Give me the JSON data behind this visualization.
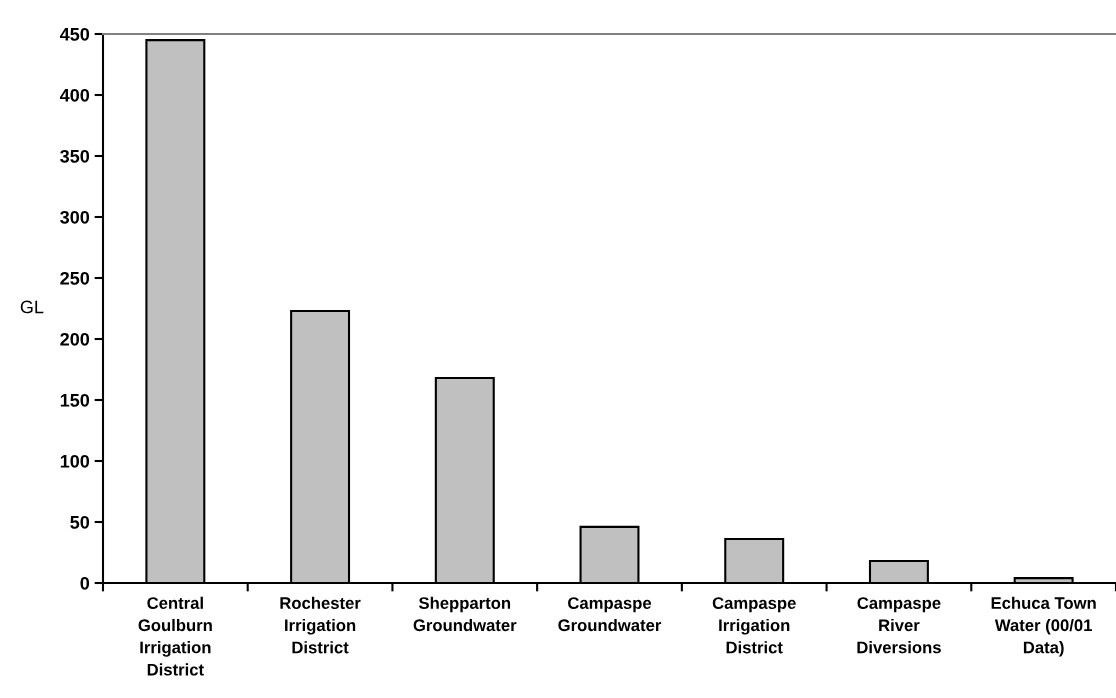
{
  "chart_data": {
    "type": "bar",
    "ylabel": "GL",
    "categories": [
      "Central\nGoulburn\nIrrigation\nDistrict",
      "Rochester\nIrrigation\nDistrict",
      "Shepparton\nGroundwater",
      "Campaspe\nGroundwater",
      "Campaspe\nIrrigation\nDistrict",
      "Campaspe\nRiver\nDiversions",
      "Echuca Town\nWater (00/01\nData)"
    ],
    "values": [
      445,
      223,
      168,
      46,
      36,
      18,
      4
    ],
    "color": "#c0c0c0",
    "ylim": [
      0,
      450
    ],
    "yticks": [
      0,
      50,
      100,
      150,
      200,
      250,
      300,
      350,
      400,
      450
    ],
    "grid": false
  }
}
